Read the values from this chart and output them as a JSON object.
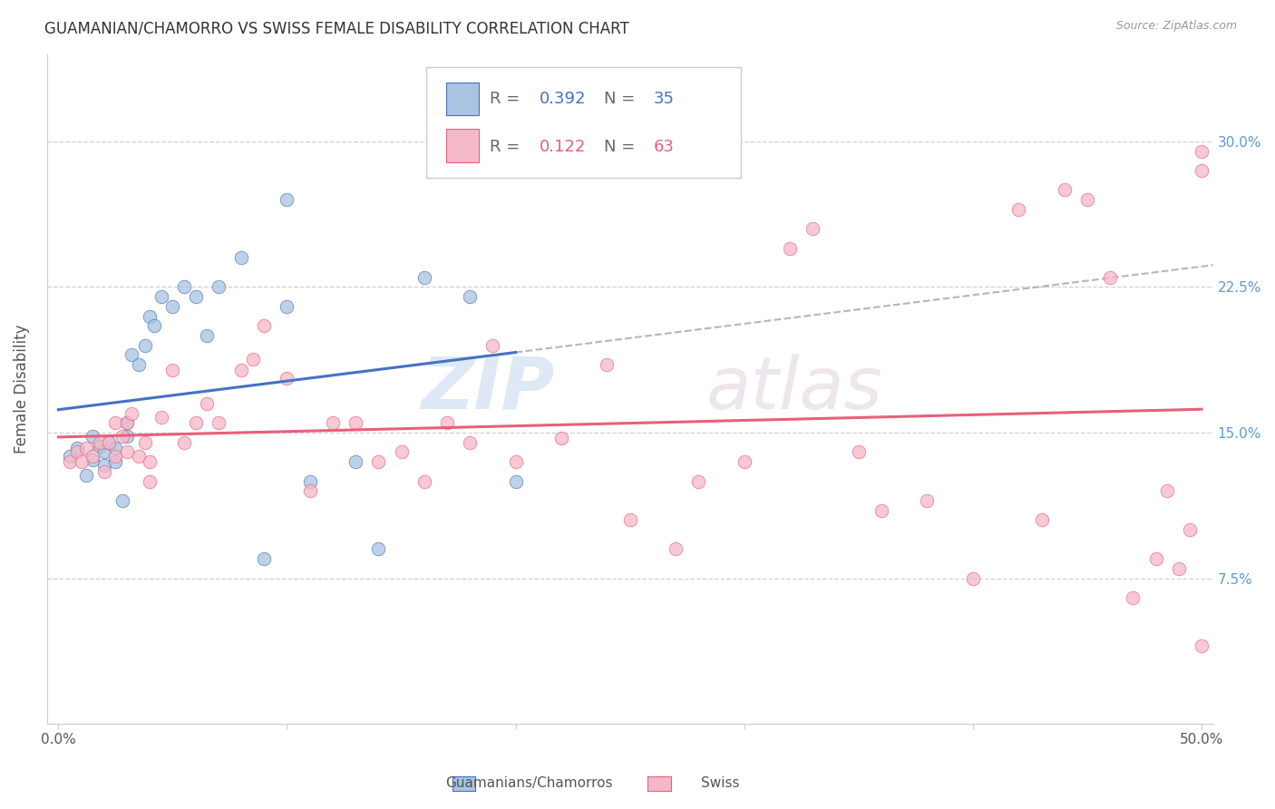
{
  "title": "GUAMANIAN/CHAMORRO VS SWISS FEMALE DISABILITY CORRELATION CHART",
  "source": "Source: ZipAtlas.com",
  "ylabel": "Female Disability",
  "y_ticks": [
    0.075,
    0.15,
    0.225,
    0.3
  ],
  "y_tick_labels": [
    "7.5%",
    "15.0%",
    "22.5%",
    "30.0%"
  ],
  "xlim": [
    -0.005,
    0.505
  ],
  "ylim": [
    0.0,
    0.345
  ],
  "color_blue": "#a8c4e0",
  "color_pink": "#f5b8c8",
  "line_color_blue": "#4472c4",
  "line_color_pink": "#e8607a",
  "watermark_zip": "ZIP",
  "watermark_atlas": "atlas",
  "guamanian_x": [
    0.005,
    0.008,
    0.012,
    0.015,
    0.015,
    0.018,
    0.02,
    0.02,
    0.022,
    0.025,
    0.025,
    0.028,
    0.03,
    0.03,
    0.032,
    0.035,
    0.038,
    0.04,
    0.042,
    0.045,
    0.05,
    0.055,
    0.06,
    0.065,
    0.07,
    0.08,
    0.09,
    0.1,
    0.1,
    0.11,
    0.13,
    0.14,
    0.16,
    0.18,
    0.2
  ],
  "guamanian_y": [
    0.138,
    0.142,
    0.128,
    0.136,
    0.148,
    0.143,
    0.133,
    0.14,
    0.145,
    0.135,
    0.142,
    0.115,
    0.155,
    0.148,
    0.19,
    0.185,
    0.195,
    0.21,
    0.205,
    0.22,
    0.215,
    0.225,
    0.22,
    0.2,
    0.225,
    0.24,
    0.085,
    0.215,
    0.27,
    0.125,
    0.135,
    0.09,
    0.23,
    0.22,
    0.125
  ],
  "swiss_x": [
    0.005,
    0.008,
    0.01,
    0.012,
    0.015,
    0.018,
    0.02,
    0.022,
    0.025,
    0.025,
    0.028,
    0.03,
    0.03,
    0.032,
    0.035,
    0.038,
    0.04,
    0.04,
    0.045,
    0.05,
    0.055,
    0.06,
    0.065,
    0.07,
    0.08,
    0.085,
    0.09,
    0.1,
    0.11,
    0.12,
    0.13,
    0.14,
    0.15,
    0.16,
    0.17,
    0.18,
    0.19,
    0.2,
    0.22,
    0.24,
    0.25,
    0.27,
    0.28,
    0.3,
    0.32,
    0.33,
    0.35,
    0.36,
    0.38,
    0.4,
    0.42,
    0.43,
    0.44,
    0.45,
    0.46,
    0.47,
    0.48,
    0.485,
    0.49,
    0.495,
    0.5,
    0.5,
    0.5
  ],
  "swiss_y": [
    0.135,
    0.14,
    0.135,
    0.142,
    0.138,
    0.145,
    0.13,
    0.145,
    0.138,
    0.155,
    0.148,
    0.14,
    0.155,
    0.16,
    0.138,
    0.145,
    0.125,
    0.135,
    0.158,
    0.182,
    0.145,
    0.155,
    0.165,
    0.155,
    0.182,
    0.188,
    0.205,
    0.178,
    0.12,
    0.155,
    0.155,
    0.135,
    0.14,
    0.125,
    0.155,
    0.145,
    0.195,
    0.135,
    0.147,
    0.185,
    0.105,
    0.09,
    0.125,
    0.135,
    0.245,
    0.255,
    0.14,
    0.11,
    0.115,
    0.075,
    0.265,
    0.105,
    0.275,
    0.27,
    0.23,
    0.065,
    0.085,
    0.12,
    0.08,
    0.1,
    0.285,
    0.295,
    0.04
  ]
}
